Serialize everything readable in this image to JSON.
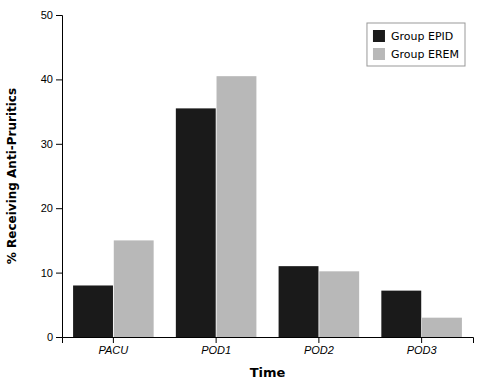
{
  "chart_data": {
    "type": "bar",
    "xlabel": "Time",
    "ylabel": "% Receiving Anti-Pruritics",
    "categories": [
      "PACU",
      "POD1",
      "POD2",
      "POD3"
    ],
    "series": [
      {
        "name": "Group EPID",
        "color": "#1a1a1a",
        "values": [
          8,
          35.5,
          11,
          7.2
        ]
      },
      {
        "name": "Group EREM",
        "color": "#b8b8b8",
        "values": [
          15,
          40.5,
          10.2,
          3
        ]
      }
    ],
    "ylim": [
      0,
      50
    ],
    "yticks": [
      0,
      10,
      20,
      30,
      40,
      50
    ],
    "legend": "upper right",
    "grid": false
  }
}
